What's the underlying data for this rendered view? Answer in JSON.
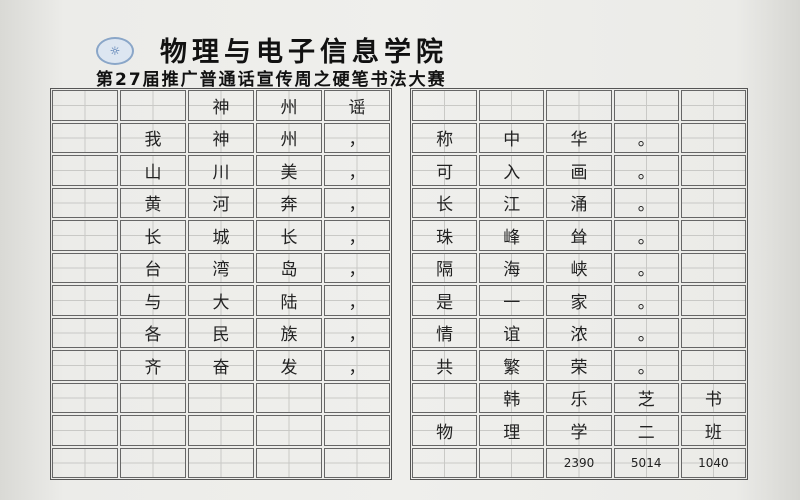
{
  "header": {
    "logo": "logo",
    "title": "物理与电子信息学院",
    "subtitle": "第27届推广普通话宣传周之硬笔书法大赛"
  },
  "left_grid": [
    [
      "",
      "",
      "神",
      "州",
      "谣"
    ],
    [
      "",
      "我",
      "神",
      "州",
      "，"
    ],
    [
      "",
      "山",
      "川",
      "美",
      "，"
    ],
    [
      "",
      "黄",
      "河",
      "奔",
      "，"
    ],
    [
      "",
      "长",
      "城",
      "长",
      "，"
    ],
    [
      "",
      "台",
      "湾",
      "岛",
      "，"
    ],
    [
      "",
      "与",
      "大",
      "陆",
      "，"
    ],
    [
      "",
      "各",
      "民",
      "族",
      "，"
    ],
    [
      "",
      "齐",
      "奋",
      "发",
      "，"
    ],
    [
      "",
      "",
      "",
      "",
      ""
    ],
    [
      "",
      "",
      "",
      "",
      ""
    ],
    [
      "",
      "",
      "",
      "",
      ""
    ]
  ],
  "right_grid": [
    [
      "",
      "",
      "",
      "",
      ""
    ],
    [
      "称",
      "中",
      "华",
      "。",
      ""
    ],
    [
      "可",
      "入",
      "画",
      "。",
      ""
    ],
    [
      "长",
      "江",
      "涌",
      "。",
      ""
    ],
    [
      "珠",
      "峰",
      "耸",
      "。",
      ""
    ],
    [
      "隔",
      "海",
      "峡",
      "。",
      ""
    ],
    [
      "是",
      "一",
      "家",
      "。",
      ""
    ],
    [
      "情",
      "谊",
      "浓",
      "。",
      ""
    ],
    [
      "共",
      "繁",
      "荣",
      "。",
      ""
    ],
    [
      "",
      "韩",
      "乐",
      "芝",
      "书"
    ],
    [
      "物",
      "理",
      "学",
      "二",
      "班"
    ],
    [
      "",
      "",
      "2390",
      "5014",
      "1040"
    ]
  ]
}
